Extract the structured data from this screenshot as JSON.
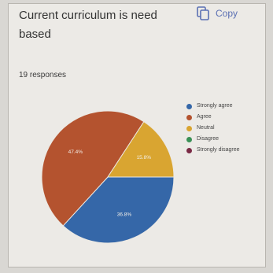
{
  "question": {
    "title": "Current curriculum is need based",
    "copy_label": "Copy",
    "responses": "19 responses"
  },
  "chart_data": {
    "type": "pie",
    "total_responses": 19,
    "categories": [
      "Strongly agree",
      "Agree",
      "Neutral",
      "Disagree",
      "Strongly disagree"
    ],
    "values": [
      36.8,
      47.4,
      15.8,
      0,
      0
    ],
    "labels": [
      "36.8%",
      "47.4%",
      "15.8%",
      "",
      ""
    ],
    "colors": [
      "#3567a8",
      "#b4532f",
      "#d9a531",
      "#3a9156",
      "#7a2a45"
    ],
    "legend_position": "right"
  }
}
